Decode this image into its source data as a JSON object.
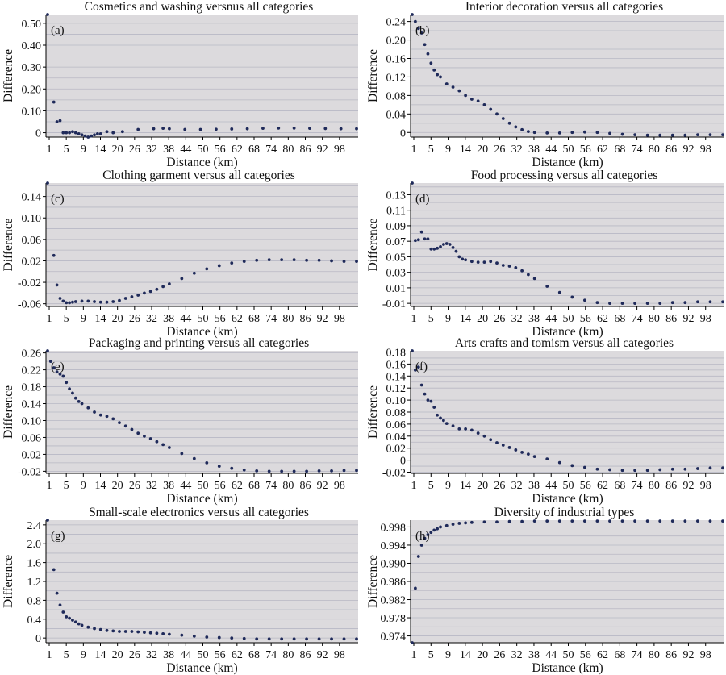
{
  "figure": {
    "background": "#ffffff",
    "plot_background": "#dcdadd",
    "grid_color": "#b8b8c4",
    "point_color": "#1f2a5a",
    "axis_color": "#000000",
    "xlabel": "Distance (km)",
    "ylabel": "Difference",
    "xticks": [
      "1",
      "5",
      "9",
      "14",
      "20",
      "26",
      "32",
      "38",
      "44",
      "50",
      "56",
      "62",
      "68",
      "74",
      "80",
      "86",
      "92",
      "98"
    ]
  },
  "chart_data": [
    {
      "type": "scatter",
      "panel": "(a)",
      "title": "Cosmetics and washing versnus all categories",
      "xlabel": "Distance (km)",
      "ylabel": "Difference",
      "xlim": [
        1,
        100
      ],
      "ylim": [
        -0.02,
        0.54
      ],
      "yticks": [
        0,
        0.1,
        0.2,
        0.3,
        0.4,
        0.5
      ],
      "ytick_labels": [
        "0",
        "0.10",
        "0.20",
        "0.30",
        "0.40",
        "0.50"
      ],
      "grid": true,
      "series": [
        {
          "x": [
            1,
            3,
            4,
            5,
            6,
            7,
            8,
            9,
            10,
            11,
            12,
            13,
            14,
            15,
            16,
            17,
            18,
            20,
            22,
            25,
            30,
            35,
            38,
            40,
            45,
            50,
            55,
            60,
            65,
            70,
            75,
            80,
            85,
            90,
            95,
            100
          ],
          "y": [
            0.54,
            0.14,
            0.05,
            0.055,
            0.0,
            0.0,
            0.0,
            0.005,
            0.0,
            -0.005,
            -0.01,
            -0.015,
            -0.02,
            -0.015,
            -0.01,
            -0.005,
            -0.005,
            0.005,
            0.0,
            0.005,
            0.015,
            0.018,
            0.02,
            0.018,
            0.015,
            0.015,
            0.016,
            0.017,
            0.018,
            0.02,
            0.021,
            0.021,
            0.02,
            0.019,
            0.018,
            0.018
          ]
        }
      ]
    },
    {
      "type": "scatter",
      "panel": "(b)",
      "title": "Interior decoration versus all categories",
      "xlabel": "Distance (km)",
      "ylabel": "Difference",
      "xlim": [
        1,
        100
      ],
      "ylim": [
        -0.01,
        0.255
      ],
      "yticks": [
        0,
        0.04,
        0.08,
        0.12,
        0.16,
        0.2,
        0.24
      ],
      "ytick_labels": [
        "0",
        "0.04",
        "0.08",
        "0.12",
        "0.16",
        "0.20",
        "0.24"
      ],
      "grid": true,
      "series": [
        {
          "x": [
            1,
            2,
            3,
            4,
            5,
            6,
            7,
            8,
            9,
            10,
            12,
            14,
            16,
            18,
            20,
            22,
            24,
            26,
            28,
            30,
            32,
            34,
            36,
            38,
            40,
            44,
            48,
            52,
            56,
            60,
            64,
            68,
            72,
            76,
            80,
            84,
            88,
            92,
            96,
            100
          ],
          "y": [
            0.255,
            0.24,
            0.225,
            0.215,
            0.19,
            0.17,
            0.15,
            0.135,
            0.125,
            0.12,
            0.105,
            0.098,
            0.09,
            0.08,
            0.072,
            0.068,
            0.06,
            0.05,
            0.04,
            0.03,
            0.02,
            0.012,
            0.006,
            0.002,
            0.0,
            -0.001,
            -0.001,
            0.0,
            0.001,
            0.0,
            -0.002,
            -0.004,
            -0.005,
            -0.006,
            -0.006,
            -0.006,
            -0.006,
            -0.005,
            -0.005,
            -0.005
          ]
        }
      ]
    },
    {
      "type": "scatter",
      "panel": "(c)",
      "title": "Clothing garment versus all categories",
      "xlabel": "Distance (km)",
      "ylabel": "Difference",
      "xlim": [
        1,
        100
      ],
      "ylim": [
        -0.065,
        0.165
      ],
      "yticks": [
        -0.06,
        -0.02,
        0.02,
        0.06,
        0.1,
        0.14
      ],
      "ytick_labels": [
        "-0.06",
        "-0.02",
        "0.02",
        "0.06",
        "0.10",
        "0.14"
      ],
      "grid": true,
      "series": [
        {
          "x": [
            1,
            3,
            4,
            5,
            6,
            7,
            8,
            9,
            10,
            12,
            14,
            16,
            18,
            20,
            22,
            24,
            26,
            28,
            30,
            32,
            34,
            36,
            38,
            40,
            44,
            48,
            52,
            56,
            60,
            64,
            68,
            72,
            76,
            80,
            84,
            88,
            92,
            96,
            100
          ],
          "y": [
            0.165,
            0.03,
            -0.025,
            -0.05,
            -0.055,
            -0.058,
            -0.058,
            -0.057,
            -0.056,
            -0.055,
            -0.055,
            -0.056,
            -0.057,
            -0.057,
            -0.056,
            -0.054,
            -0.05,
            -0.047,
            -0.044,
            -0.04,
            -0.037,
            -0.033,
            -0.028,
            -0.023,
            -0.013,
            -0.003,
            0.005,
            0.011,
            0.016,
            0.019,
            0.021,
            0.022,
            0.022,
            0.022,
            0.021,
            0.021,
            0.02,
            0.019,
            0.019
          ]
        }
      ]
    },
    {
      "type": "scatter",
      "panel": "(d)",
      "title": "Food processing versus all categories",
      "xlabel": "Distance (km)",
      "ylabel": "Difference",
      "xlim": [
        1,
        100
      ],
      "ylim": [
        -0.014,
        0.145
      ],
      "yticks": [
        -0.01,
        0.01,
        0.03,
        0.05,
        0.07,
        0.09,
        0.11,
        0.13
      ],
      "ytick_labels": [
        "-0.01",
        "0.01",
        "0.03",
        "0.05",
        "0.07",
        "0.09",
        "0.11",
        "0.13"
      ],
      "grid": true,
      "series": [
        {
          "x": [
            1,
            2,
            3,
            4,
            5,
            6,
            7,
            8,
            9,
            10,
            11,
            12,
            13,
            14,
            15,
            16,
            17,
            18,
            20,
            22,
            24,
            26,
            28,
            30,
            32,
            34,
            36,
            38,
            40,
            44,
            48,
            52,
            56,
            60,
            64,
            68,
            72,
            76,
            80,
            84,
            88,
            92,
            96,
            100
          ],
          "y": [
            0.145,
            0.071,
            0.072,
            0.082,
            0.073,
            0.073,
            0.06,
            0.06,
            0.061,
            0.063,
            0.066,
            0.067,
            0.066,
            0.062,
            0.057,
            0.05,
            0.047,
            0.046,
            0.044,
            0.043,
            0.043,
            0.044,
            0.042,
            0.039,
            0.038,
            0.036,
            0.032,
            0.027,
            0.022,
            0.012,
            0.004,
            -0.002,
            -0.006,
            -0.009,
            -0.01,
            -0.01,
            -0.01,
            -0.01,
            -0.01,
            -0.009,
            -0.009,
            -0.008,
            -0.008,
            -0.008
          ]
        }
      ]
    },
    {
      "type": "scatter",
      "panel": "(e)",
      "title": "Packaging and printing versus all categories",
      "xlabel": "Distance (km)",
      "ylabel": "Difference",
      "xlim": [
        1,
        100
      ],
      "ylim": [
        -0.025,
        0.265
      ],
      "yticks": [
        -0.02,
        0.02,
        0.06,
        0.1,
        0.14,
        0.18,
        0.22,
        0.26
      ],
      "ytick_labels": [
        "-0.02",
        "0.02",
        "0.06",
        "0.10",
        "0.14",
        "0.18",
        "0.22",
        "0.26"
      ],
      "grid": true,
      "series": [
        {
          "x": [
            1,
            2,
            3,
            4,
            5,
            6,
            7,
            8,
            9,
            10,
            11,
            12,
            14,
            16,
            18,
            20,
            22,
            24,
            26,
            28,
            30,
            32,
            34,
            36,
            38,
            40,
            44,
            48,
            52,
            56,
            60,
            64,
            68,
            72,
            76,
            80,
            84,
            88,
            92,
            96,
            100
          ],
          "y": [
            0.265,
            0.24,
            0.225,
            0.215,
            0.21,
            0.205,
            0.19,
            0.175,
            0.165,
            0.153,
            0.145,
            0.14,
            0.13,
            0.12,
            0.113,
            0.11,
            0.104,
            0.095,
            0.087,
            0.079,
            0.07,
            0.063,
            0.057,
            0.05,
            0.043,
            0.036,
            0.022,
            0.01,
            0.0,
            -0.008,
            -0.013,
            -0.017,
            -0.019,
            -0.02,
            -0.02,
            -0.02,
            -0.02,
            -0.019,
            -0.019,
            -0.018,
            -0.018
          ]
        }
      ]
    },
    {
      "type": "scatter",
      "panel": "(f)",
      "title": "Arts crafts and tomism versus all categories",
      "xlabel": "Distance (km)",
      "ylabel": "Difference",
      "xlim": [
        1,
        100
      ],
      "ylim": [
        -0.022,
        0.182
      ],
      "yticks": [
        -0.02,
        0,
        0.02,
        0.04,
        0.06,
        0.08,
        0.1,
        0.12,
        0.14,
        0.16,
        0.18
      ],
      "ytick_labels": [
        "-0.02",
        "0",
        "0.02",
        "0.04",
        "0.06",
        "0.08",
        "0.10",
        "0.12",
        "0.14",
        "0.16",
        "0.18"
      ],
      "grid": true,
      "series": [
        {
          "x": [
            1,
            2,
            3,
            4,
            5,
            6,
            7,
            8,
            9,
            10,
            11,
            12,
            14,
            16,
            18,
            20,
            22,
            24,
            26,
            28,
            30,
            32,
            34,
            36,
            38,
            40,
            44,
            48,
            52,
            56,
            60,
            64,
            68,
            72,
            76,
            80,
            84,
            88,
            92,
            96,
            100
          ],
          "y": [
            0.182,
            0.15,
            0.155,
            0.125,
            0.11,
            0.1,
            0.098,
            0.088,
            0.075,
            0.07,
            0.066,
            0.061,
            0.057,
            0.052,
            0.052,
            0.05,
            0.045,
            0.04,
            0.034,
            0.029,
            0.025,
            0.021,
            0.017,
            0.013,
            0.01,
            0.006,
            0.002,
            -0.004,
            -0.009,
            -0.012,
            -0.015,
            -0.016,
            -0.017,
            -0.017,
            -0.017,
            -0.016,
            -0.015,
            -0.015,
            -0.014,
            -0.013,
            -0.013
          ]
        }
      ]
    },
    {
      "type": "scatter",
      "panel": "(g)",
      "title": "Small-scale electronics versus all categories",
      "xlabel": "Distance (km)",
      "ylabel": "Difference",
      "xlim": [
        1,
        100
      ],
      "ylim": [
        -0.1,
        2.5
      ],
      "yticks": [
        0,
        0.4,
        0.8,
        1.2,
        1.6,
        2.0,
        2.4
      ],
      "ytick_labels": [
        "0",
        "0.4",
        "0.8",
        "1.2",
        "1.6",
        "2.0",
        "2.4"
      ],
      "grid": true,
      "series": [
        {
          "x": [
            1,
            3,
            4,
            5,
            6,
            7,
            8,
            9,
            10,
            11,
            12,
            14,
            16,
            18,
            20,
            22,
            24,
            26,
            28,
            30,
            32,
            34,
            36,
            38,
            40,
            44,
            48,
            52,
            56,
            60,
            64,
            68,
            72,
            76,
            80,
            84,
            88,
            92,
            96,
            100
          ],
          "y": [
            2.5,
            1.45,
            0.95,
            0.7,
            0.55,
            0.45,
            0.42,
            0.38,
            0.34,
            0.3,
            0.27,
            0.23,
            0.2,
            0.18,
            0.16,
            0.15,
            0.14,
            0.14,
            0.14,
            0.13,
            0.12,
            0.11,
            0.1,
            0.09,
            0.08,
            0.06,
            0.04,
            0.02,
            0.01,
            0.0,
            -0.01,
            -0.02,
            -0.02,
            -0.02,
            -0.02,
            -0.02,
            -0.02,
            -0.02,
            -0.02,
            -0.02
          ]
        }
      ]
    },
    {
      "type": "scatter",
      "panel": "(h)",
      "title": "Diversity of industrial types",
      "xlabel": "Distance (km)",
      "ylabel": "Difference",
      "xlim": [
        1,
        100
      ],
      "ylim": [
        0.9725,
        0.9995
      ],
      "yticks": [
        0.974,
        0.978,
        0.982,
        0.986,
        0.99,
        0.994,
        0.998
      ],
      "ytick_labels": [
        "0.974",
        "0.978",
        "0.982",
        "0.986",
        "0.990",
        "0.994",
        "0.998"
      ],
      "grid": true,
      "series": [
        {
          "x": [
            1,
            2,
            3,
            4,
            5,
            6,
            7,
            8,
            9,
            10,
            12,
            14,
            16,
            18,
            20,
            24,
            28,
            32,
            36,
            40,
            44,
            48,
            52,
            56,
            60,
            64,
            68,
            72,
            76,
            80,
            84,
            88,
            92,
            96,
            100
          ],
          "y": [
            0.9725,
            0.9845,
            0.9915,
            0.994,
            0.9955,
            0.9963,
            0.9968,
            0.9973,
            0.9976,
            0.998,
            0.9983,
            0.9986,
            0.9988,
            0.9989,
            0.999,
            0.9991,
            0.9991,
            0.9992,
            0.9992,
            0.9993,
            0.9993,
            0.9993,
            0.9993,
            0.9993,
            0.9993,
            0.9993,
            0.9993,
            0.9993,
            0.9993,
            0.9993,
            0.9993,
            0.9993,
            0.9993,
            0.9993,
            0.9993
          ]
        }
      ]
    }
  ]
}
